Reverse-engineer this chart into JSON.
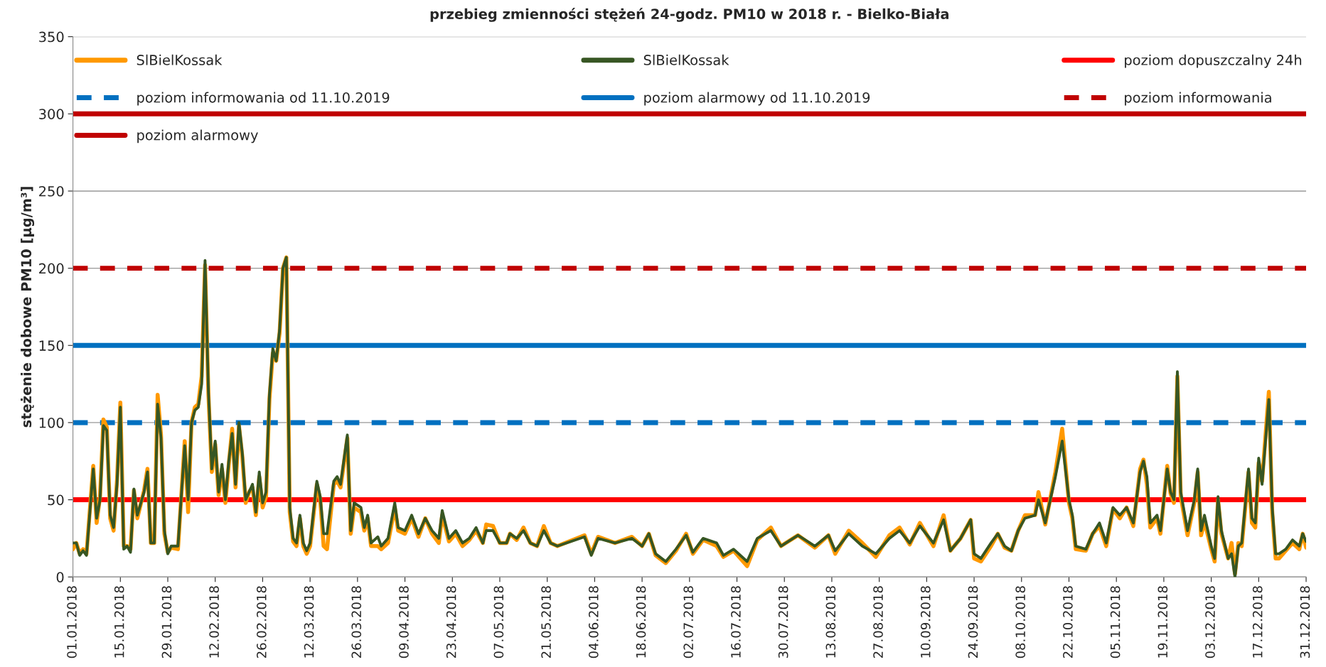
{
  "chart_data": {
    "type": "line",
    "title": "przebieg zmienności stężeń 24-godz. PM10 w 2018 r. - Bielko-Biała",
    "ylabel": "stężenie dobowe PM10 [µg/m³]",
    "x": [
      "2018-01-01",
      "2018-01-02",
      "2018-01-03",
      "2018-01-04",
      "2018-01-05",
      "2018-01-07",
      "2018-01-08",
      "2018-01-09",
      "2018-01-10",
      "2018-01-11",
      "2018-01-12",
      "2018-01-13",
      "2018-01-14",
      "2018-01-15",
      "2018-01-16",
      "2018-01-17",
      "2018-01-18",
      "2018-01-19",
      "2018-01-20",
      "2018-01-22",
      "2018-01-23",
      "2018-01-24",
      "2018-01-25",
      "2018-01-26",
      "2018-01-27",
      "2018-01-28",
      "2018-01-29",
      "2018-01-30",
      "2018-02-01",
      "2018-02-03",
      "2018-02-04",
      "2018-02-05",
      "2018-02-06",
      "2018-02-07",
      "2018-02-08",
      "2018-02-09",
      "2018-02-10",
      "2018-02-11",
      "2018-02-12",
      "2018-02-13",
      "2018-02-14",
      "2018-02-15",
      "2018-02-16",
      "2018-02-17",
      "2018-02-18",
      "2018-02-19",
      "2018-02-20",
      "2018-02-21",
      "2018-02-22",
      "2018-02-23",
      "2018-02-24",
      "2018-02-25",
      "2018-02-26",
      "2018-02-27",
      "2018-02-28",
      "2018-03-01",
      "2018-03-02",
      "2018-03-03",
      "2018-03-04",
      "2018-03-05",
      "2018-03-06",
      "2018-03-07",
      "2018-03-08",
      "2018-03-09",
      "2018-03-10",
      "2018-03-11",
      "2018-03-12",
      "2018-03-14",
      "2018-03-15",
      "2018-03-16",
      "2018-03-17",
      "2018-03-19",
      "2018-03-20",
      "2018-03-21",
      "2018-03-23",
      "2018-03-24",
      "2018-03-25",
      "2018-03-27",
      "2018-03-28",
      "2018-03-29",
      "2018-03-30",
      "2018-04-01",
      "2018-04-02",
      "2018-04-04",
      "2018-04-06",
      "2018-04-07",
      "2018-04-09",
      "2018-04-11",
      "2018-04-13",
      "2018-04-15",
      "2018-04-17",
      "2018-04-19",
      "2018-04-20",
      "2018-04-22",
      "2018-04-24",
      "2018-04-26",
      "2018-04-28",
      "2018-04-30",
      "2018-05-02",
      "2018-05-03",
      "2018-05-05",
      "2018-05-07",
      "2018-05-09",
      "2018-05-10",
      "2018-05-12",
      "2018-05-14",
      "2018-05-16",
      "2018-05-18",
      "2018-05-20",
      "2018-05-22",
      "2018-05-24",
      "2018-06-01",
      "2018-06-03",
      "2018-06-05",
      "2018-06-10",
      "2018-06-15",
      "2018-06-18",
      "2018-06-20",
      "2018-06-22",
      "2018-06-25",
      "2018-06-28",
      "2018-07-01",
      "2018-07-03",
      "2018-07-06",
      "2018-07-10",
      "2018-07-12",
      "2018-07-15",
      "2018-07-19",
      "2018-07-22",
      "2018-07-26",
      "2018-07-29",
      "2018-08-03",
      "2018-08-08",
      "2018-08-12",
      "2018-08-14",
      "2018-08-18",
      "2018-08-22",
      "2018-08-26",
      "2018-08-30",
      "2018-09-02",
      "2018-09-05",
      "2018-09-08",
      "2018-09-12",
      "2018-09-15",
      "2018-09-17",
      "2018-09-20",
      "2018-09-23",
      "2018-09-24",
      "2018-09-26",
      "2018-09-29",
      "2018-10-01",
      "2018-10-03",
      "2018-10-05",
      "2018-10-07",
      "2018-10-09",
      "2018-10-12",
      "2018-10-13",
      "2018-10-15",
      "2018-10-18",
      "2018-10-20",
      "2018-10-22",
      "2018-10-23",
      "2018-10-24",
      "2018-10-27",
      "2018-10-29",
      "2018-10-31",
      "2018-11-02",
      "2018-11-04",
      "2018-11-06",
      "2018-11-08",
      "2018-11-10",
      "2018-11-12",
      "2018-11-13",
      "2018-11-14",
      "2018-11-15",
      "2018-11-17",
      "2018-11-18",
      "2018-11-20",
      "2018-11-21",
      "2018-11-22",
      "2018-11-23",
      "2018-11-24",
      "2018-11-26",
      "2018-11-28",
      "2018-11-29",
      "2018-11-30",
      "2018-12-01",
      "2018-12-03",
      "2018-12-04",
      "2018-12-05",
      "2018-12-06",
      "2018-12-08",
      "2018-12-09",
      "2018-12-10",
      "2018-12-11",
      "2018-12-12",
      "2018-12-14",
      "2018-12-15",
      "2018-12-16",
      "2018-12-17",
      "2018-12-18",
      "2018-12-20",
      "2018-12-21",
      "2018-12-22",
      "2018-12-23",
      "2018-12-25",
      "2018-12-27",
      "2018-12-29",
      "2018-12-30",
      "2018-12-31"
    ],
    "series": [
      {
        "name": "SlBielKossak",
        "color": "#ff9900",
        "values": [
          18,
          22,
          15,
          18,
          15,
          72,
          35,
          52,
          102,
          97,
          38,
          30,
          62,
          113,
          20,
          20,
          18,
          56,
          38,
          56,
          70,
          22,
          22,
          118,
          92,
          28,
          16,
          19,
          18,
          88,
          42,
          100,
          110,
          112,
          130,
          202,
          118,
          68,
          86,
          53,
          70,
          48,
          73,
          96,
          58,
          98,
          78,
          48,
          55,
          58,
          40,
          65,
          45,
          52,
          115,
          145,
          140,
          158,
          200,
          207,
          42,
          23,
          20,
          38,
          20,
          15,
          20,
          60,
          50,
          20,
          18,
          60,
          62,
          58,
          90,
          28,
          45,
          42,
          30,
          38,
          20,
          20,
          18,
          22,
          45,
          30,
          28,
          38,
          26,
          38,
          28,
          22,
          40,
          23,
          28,
          20,
          24,
          30,
          22,
          34,
          33,
          22,
          22,
          28,
          24,
          32,
          22,
          20,
          33,
          22,
          20,
          27,
          15,
          26,
          22,
          26,
          20,
          28,
          14,
          9,
          17,
          28,
          15,
          24,
          20,
          13,
          17,
          7,
          24,
          32,
          20,
          27,
          19,
          27,
          15,
          30,
          22,
          13,
          27,
          32,
          21,
          35,
          20,
          40,
          17,
          25,
          37,
          12,
          10,
          20,
          28,
          19,
          17,
          30,
          40,
          40,
          55,
          34,
          68,
          96,
          48,
          38,
          18,
          17,
          28,
          33,
          20,
          44,
          38,
          45,
          33,
          70,
          76,
          60,
          32,
          38,
          28,
          72,
          54,
          48,
          130,
          52,
          27,
          48,
          68,
          27,
          36,
          18,
          10,
          50,
          28,
          12,
          22,
          2,
          22,
          20,
          68,
          35,
          32,
          74,
          62,
          120,
          42,
          12,
          12,
          17,
          22,
          18,
          28,
          19
        ]
      },
      {
        "name": "SlBielKossak",
        "color": "#375623",
        "values": [
          22,
          22,
          14,
          17,
          14,
          70,
          38,
          50,
          98,
          95,
          40,
          32,
          60,
          110,
          18,
          20,
          16,
          57,
          40,
          55,
          68,
          22,
          22,
          112,
          90,
          30,
          15,
          20,
          20,
          85,
          50,
          100,
          108,
          110,
          125,
          205,
          120,
          70,
          88,
          55,
          73,
          50,
          75,
          93,
          60,
          100,
          80,
          50,
          55,
          60,
          42,
          68,
          48,
          55,
          118,
          148,
          140,
          160,
          200,
          207,
          45,
          25,
          22,
          40,
          22,
          17,
          22,
          62,
          52,
          28,
          28,
          62,
          65,
          60,
          92,
          30,
          48,
          45,
          32,
          40,
          22,
          26,
          20,
          25,
          48,
          32,
          30,
          40,
          28,
          38,
          30,
          25,
          43,
          25,
          30,
          22,
          25,
          32,
          22,
          30,
          30,
          22,
          22,
          28,
          25,
          30,
          22,
          20,
          30,
          22,
          20,
          26,
          14,
          25,
          22,
          25,
          20,
          28,
          15,
          10,
          18,
          27,
          16,
          25,
          22,
          14,
          18,
          10,
          25,
          30,
          20,
          27,
          20,
          27,
          17,
          28,
          20,
          15,
          25,
          30,
          22,
          33,
          22,
          37,
          17,
          25,
          37,
          15,
          12,
          22,
          28,
          20,
          17,
          30,
          38,
          40,
          50,
          35,
          65,
          88,
          50,
          40,
          20,
          18,
          28,
          35,
          22,
          45,
          40,
          45,
          35,
          68,
          75,
          65,
          35,
          40,
          30,
          70,
          55,
          50,
          133,
          55,
          30,
          50,
          70,
          30,
          40,
          20,
          12,
          52,
          30,
          12,
          15,
          0,
          20,
          22,
          70,
          38,
          35,
          77,
          60,
          115,
          45,
          15,
          15,
          18,
          24,
          20,
          28,
          23
        ]
      }
    ],
    "xlim": [
      "2018-01-01",
      "2018-12-31"
    ],
    "xticks": [
      {
        "value": "2018-01-01",
        "label": "01.01.2018"
      },
      {
        "value": "2018-01-15",
        "label": "15.01.2018"
      },
      {
        "value": "2018-01-29",
        "label": "29.01.2018"
      },
      {
        "value": "2018-02-12",
        "label": "12.02.2018"
      },
      {
        "value": "2018-02-26",
        "label": "26.02.2018"
      },
      {
        "value": "2018-03-12",
        "label": "12.03.2018"
      },
      {
        "value": "2018-03-26",
        "label": "26.03.2018"
      },
      {
        "value": "2018-04-09",
        "label": "09.04.2018"
      },
      {
        "value": "2018-04-23",
        "label": "23.04.2018"
      },
      {
        "value": "2018-05-07",
        "label": "07.05.2018"
      },
      {
        "value": "2018-05-21",
        "label": "21.05.2018"
      },
      {
        "value": "2018-06-04",
        "label": "04.06.2018"
      },
      {
        "value": "2018-06-18",
        "label": "18.06.2018"
      },
      {
        "value": "2018-07-02",
        "label": "02.07.2018"
      },
      {
        "value": "2018-07-16",
        "label": "16.07.2018"
      },
      {
        "value": "2018-07-30",
        "label": "30.07.2018"
      },
      {
        "value": "2018-08-13",
        "label": "13.08.2018"
      },
      {
        "value": "2018-08-27",
        "label": "27.08.2018"
      },
      {
        "value": "2018-09-10",
        "label": "10.09.2018"
      },
      {
        "value": "2018-09-24",
        "label": "24.09.2018"
      },
      {
        "value": "2018-10-08",
        "label": "08.10.2018"
      },
      {
        "value": "2018-10-22",
        "label": "22.10.2018"
      },
      {
        "value": "2018-11-05",
        "label": "05.11.2018"
      },
      {
        "value": "2018-11-19",
        "label": "19.11.2018"
      },
      {
        "value": "2018-12-03",
        "label": "03.12.2018"
      },
      {
        "value": "2018-12-17",
        "label": "17.12.2018"
      },
      {
        "value": "2018-12-31",
        "label": "31.12.2018"
      }
    ],
    "ylim": [
      0,
      350
    ],
    "yticks": [
      0,
      50,
      100,
      150,
      200,
      250,
      300,
      350
    ],
    "ref_lines": [
      {
        "axis": "y",
        "value": 50,
        "label": "poziom dopuszczalny 24h",
        "color": "#ff0000",
        "line_style": "solid"
      },
      {
        "axis": "y",
        "value": 100,
        "label": "poziom informowania od 11.10.2019",
        "color": "#0070c0",
        "line_style": "dashed"
      },
      {
        "axis": "y",
        "value": 150,
        "label": "poziom alarmowy od 11.10.2019",
        "color": "#0070c0",
        "line_style": "solid"
      },
      {
        "axis": "y",
        "value": 200,
        "label": "poziom informowania",
        "color": "#c00000",
        "line_style": "dashed"
      },
      {
        "axis": "y",
        "value": 300,
        "label": "poziom alarmowy",
        "color": "#c00000",
        "line_style": "solid"
      }
    ],
    "grid": "y",
    "legend": "top",
    "line_style": "solid",
    "marker": "none"
  }
}
